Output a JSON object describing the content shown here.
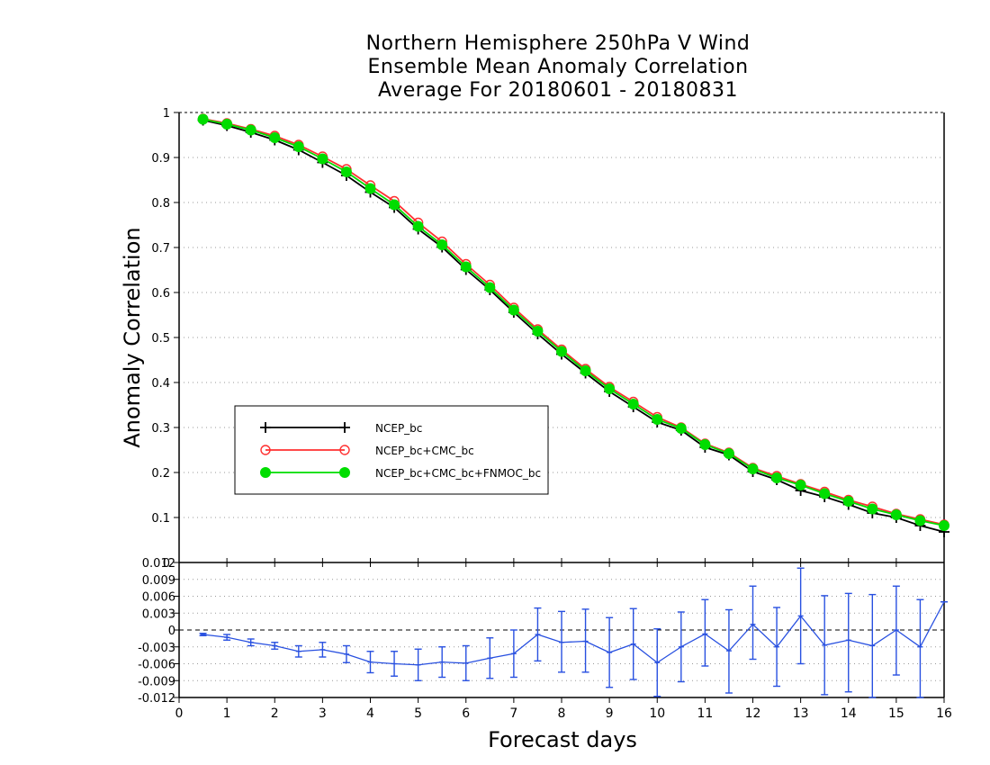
{
  "chart": {
    "title_lines": [
      "Northern Hemisphere 250hPa V Wind",
      "Ensemble Mean Anomaly Correlation",
      "Average For 20180601 - 20180831"
    ],
    "xlabel": "Forecast days",
    "ylabel": "Anomaly Correlation"
  },
  "chart_data": [
    {
      "type": "line",
      "title": "Northern Hemisphere 250hPa V Wind / Ensemble Mean Anomaly Correlation / Average For 20180601 - 20180831",
      "xlabel": "Forecast days",
      "ylabel": "Anomaly Correlation",
      "xlim": [
        0,
        16
      ],
      "ylim": [
        0,
        1
      ],
      "xticks": [
        0,
        1,
        2,
        3,
        4,
        5,
        6,
        7,
        8,
        9,
        10,
        11,
        12,
        13,
        14,
        15,
        16
      ],
      "yticks": [
        "0",
        "0.1",
        "0.2",
        "0.3",
        "0.4",
        "0.5",
        "0.6",
        "0.7",
        "0.8",
        "0.9",
        "1"
      ],
      "grid": "horizontal dotted",
      "legend_position": "lower-left",
      "x": [
        0.5,
        1,
        1.5,
        2,
        2.5,
        3,
        3.5,
        4,
        4.5,
        5,
        5.5,
        6,
        6.5,
        7,
        7.5,
        8,
        8.5,
        9,
        9.5,
        10,
        10.5,
        11,
        11.5,
        12,
        12.5,
        13,
        13.5,
        14,
        14.5,
        15,
        15.5,
        16
      ],
      "series": [
        {
          "name": "NCEP_bc",
          "color": "#000000",
          "marker": "plus",
          "values": [
            0.983,
            0.971,
            0.956,
            0.939,
            0.917,
            0.889,
            0.86,
            0.823,
            0.789,
            0.741,
            0.701,
            0.651,
            0.606,
            0.556,
            0.508,
            0.463,
            0.421,
            0.38,
            0.346,
            0.312,
            0.294,
            0.256,
            0.239,
            0.202,
            0.184,
            0.16,
            0.146,
            0.129,
            0.11,
            0.1,
            0.082,
            0.068
          ]
        },
        {
          "name": "NCEP_bc+CMC_bc",
          "color": "#ff3030",
          "marker": "open-circle",
          "values": [
            0.986,
            0.976,
            0.963,
            0.948,
            0.928,
            0.902,
            0.874,
            0.838,
            0.803,
            0.755,
            0.713,
            0.663,
            0.617,
            0.566,
            0.518,
            0.473,
            0.43,
            0.39,
            0.357,
            0.323,
            0.3,
            0.264,
            0.244,
            0.21,
            0.192,
            0.174,
            0.157,
            0.139,
            0.124,
            0.108,
            0.096,
            0.084
          ]
        },
        {
          "name": "NCEP_bc+CMC_bc+FNMOC_bc",
          "color": "#00dd00",
          "marker": "filled-circle",
          "values": [
            0.985,
            0.974,
            0.961,
            0.944,
            0.924,
            0.897,
            0.868,
            0.831,
            0.795,
            0.747,
            0.706,
            0.657,
            0.611,
            0.561,
            0.514,
            0.469,
            0.426,
            0.386,
            0.352,
            0.318,
            0.298,
            0.262,
            0.242,
            0.208,
            0.188,
            0.172,
            0.153,
            0.136,
            0.119,
            0.106,
            0.093,
            0.082
          ]
        }
      ]
    },
    {
      "type": "line",
      "title": "",
      "xlabel": "Forecast days",
      "ylabel": "",
      "xlim": [
        0,
        16
      ],
      "ylim": [
        -0.012,
        0.012
      ],
      "yticks": [
        "0.012",
        "0.009",
        "0.006",
        "0.003",
        "0",
        "-0.003",
        "-0.006",
        "-0.009",
        "-0.012"
      ],
      "grid": "horizontal dotted",
      "x": [
        0.5,
        1,
        1.5,
        2,
        2.5,
        3,
        3.5,
        4,
        4.5,
        5,
        5.5,
        6,
        6.5,
        7,
        7.5,
        8,
        8.5,
        9,
        9.5,
        10,
        10.5,
        11,
        11.5,
        12,
        12.5,
        13,
        13.5,
        14,
        14.5,
        15,
        15.5,
        16
      ],
      "series": [
        {
          "name": "",
          "color": "#2850e0",
          "values": [
            -0.0008,
            -0.0013,
            -0.0022,
            -0.0028,
            -0.0038,
            -0.0035,
            -0.0043,
            -0.0057,
            -0.006,
            -0.0062,
            -0.0057,
            -0.0059,
            -0.005,
            -0.0042,
            -0.0008,
            -0.0022,
            -0.002,
            -0.004,
            -0.0025,
            -0.0058,
            -0.003,
            -0.0007,
            -0.0037,
            0.001,
            -0.003,
            0.0025,
            -0.0027,
            -0.0018,
            -0.0028,
            0.0,
            -0.003,
            0.005
          ],
          "error_low": [
            -0.001,
            -0.0018,
            -0.0028,
            -0.0034,
            -0.0048,
            -0.0048,
            -0.0058,
            -0.0076,
            -0.0082,
            -0.009,
            -0.0084,
            -0.009,
            -0.0086,
            -0.0084,
            -0.0055,
            -0.0075,
            -0.0075,
            -0.0102,
            -0.0088,
            -0.0118,
            -0.0092,
            -0.0064,
            -0.0112,
            -0.0052,
            -0.01,
            -0.006,
            -0.0115,
            -0.011,
            -0.012,
            -0.008,
            -0.012,
            0.005
          ],
          "error_high": [
            -0.0006,
            -0.0008,
            -0.0016,
            -0.0022,
            -0.0028,
            -0.0022,
            -0.0028,
            -0.0038,
            -0.0038,
            -0.0034,
            -0.003,
            -0.0028,
            -0.0014,
            0.0,
            0.0039,
            0.0033,
            0.0037,
            0.0022,
            0.0038,
            0.0002,
            0.0032,
            0.0054,
            0.0036,
            0.0078,
            0.004,
            0.011,
            0.0061,
            0.0065,
            0.0063,
            0.0078,
            0.0054,
            0.005
          ]
        }
      ]
    }
  ]
}
